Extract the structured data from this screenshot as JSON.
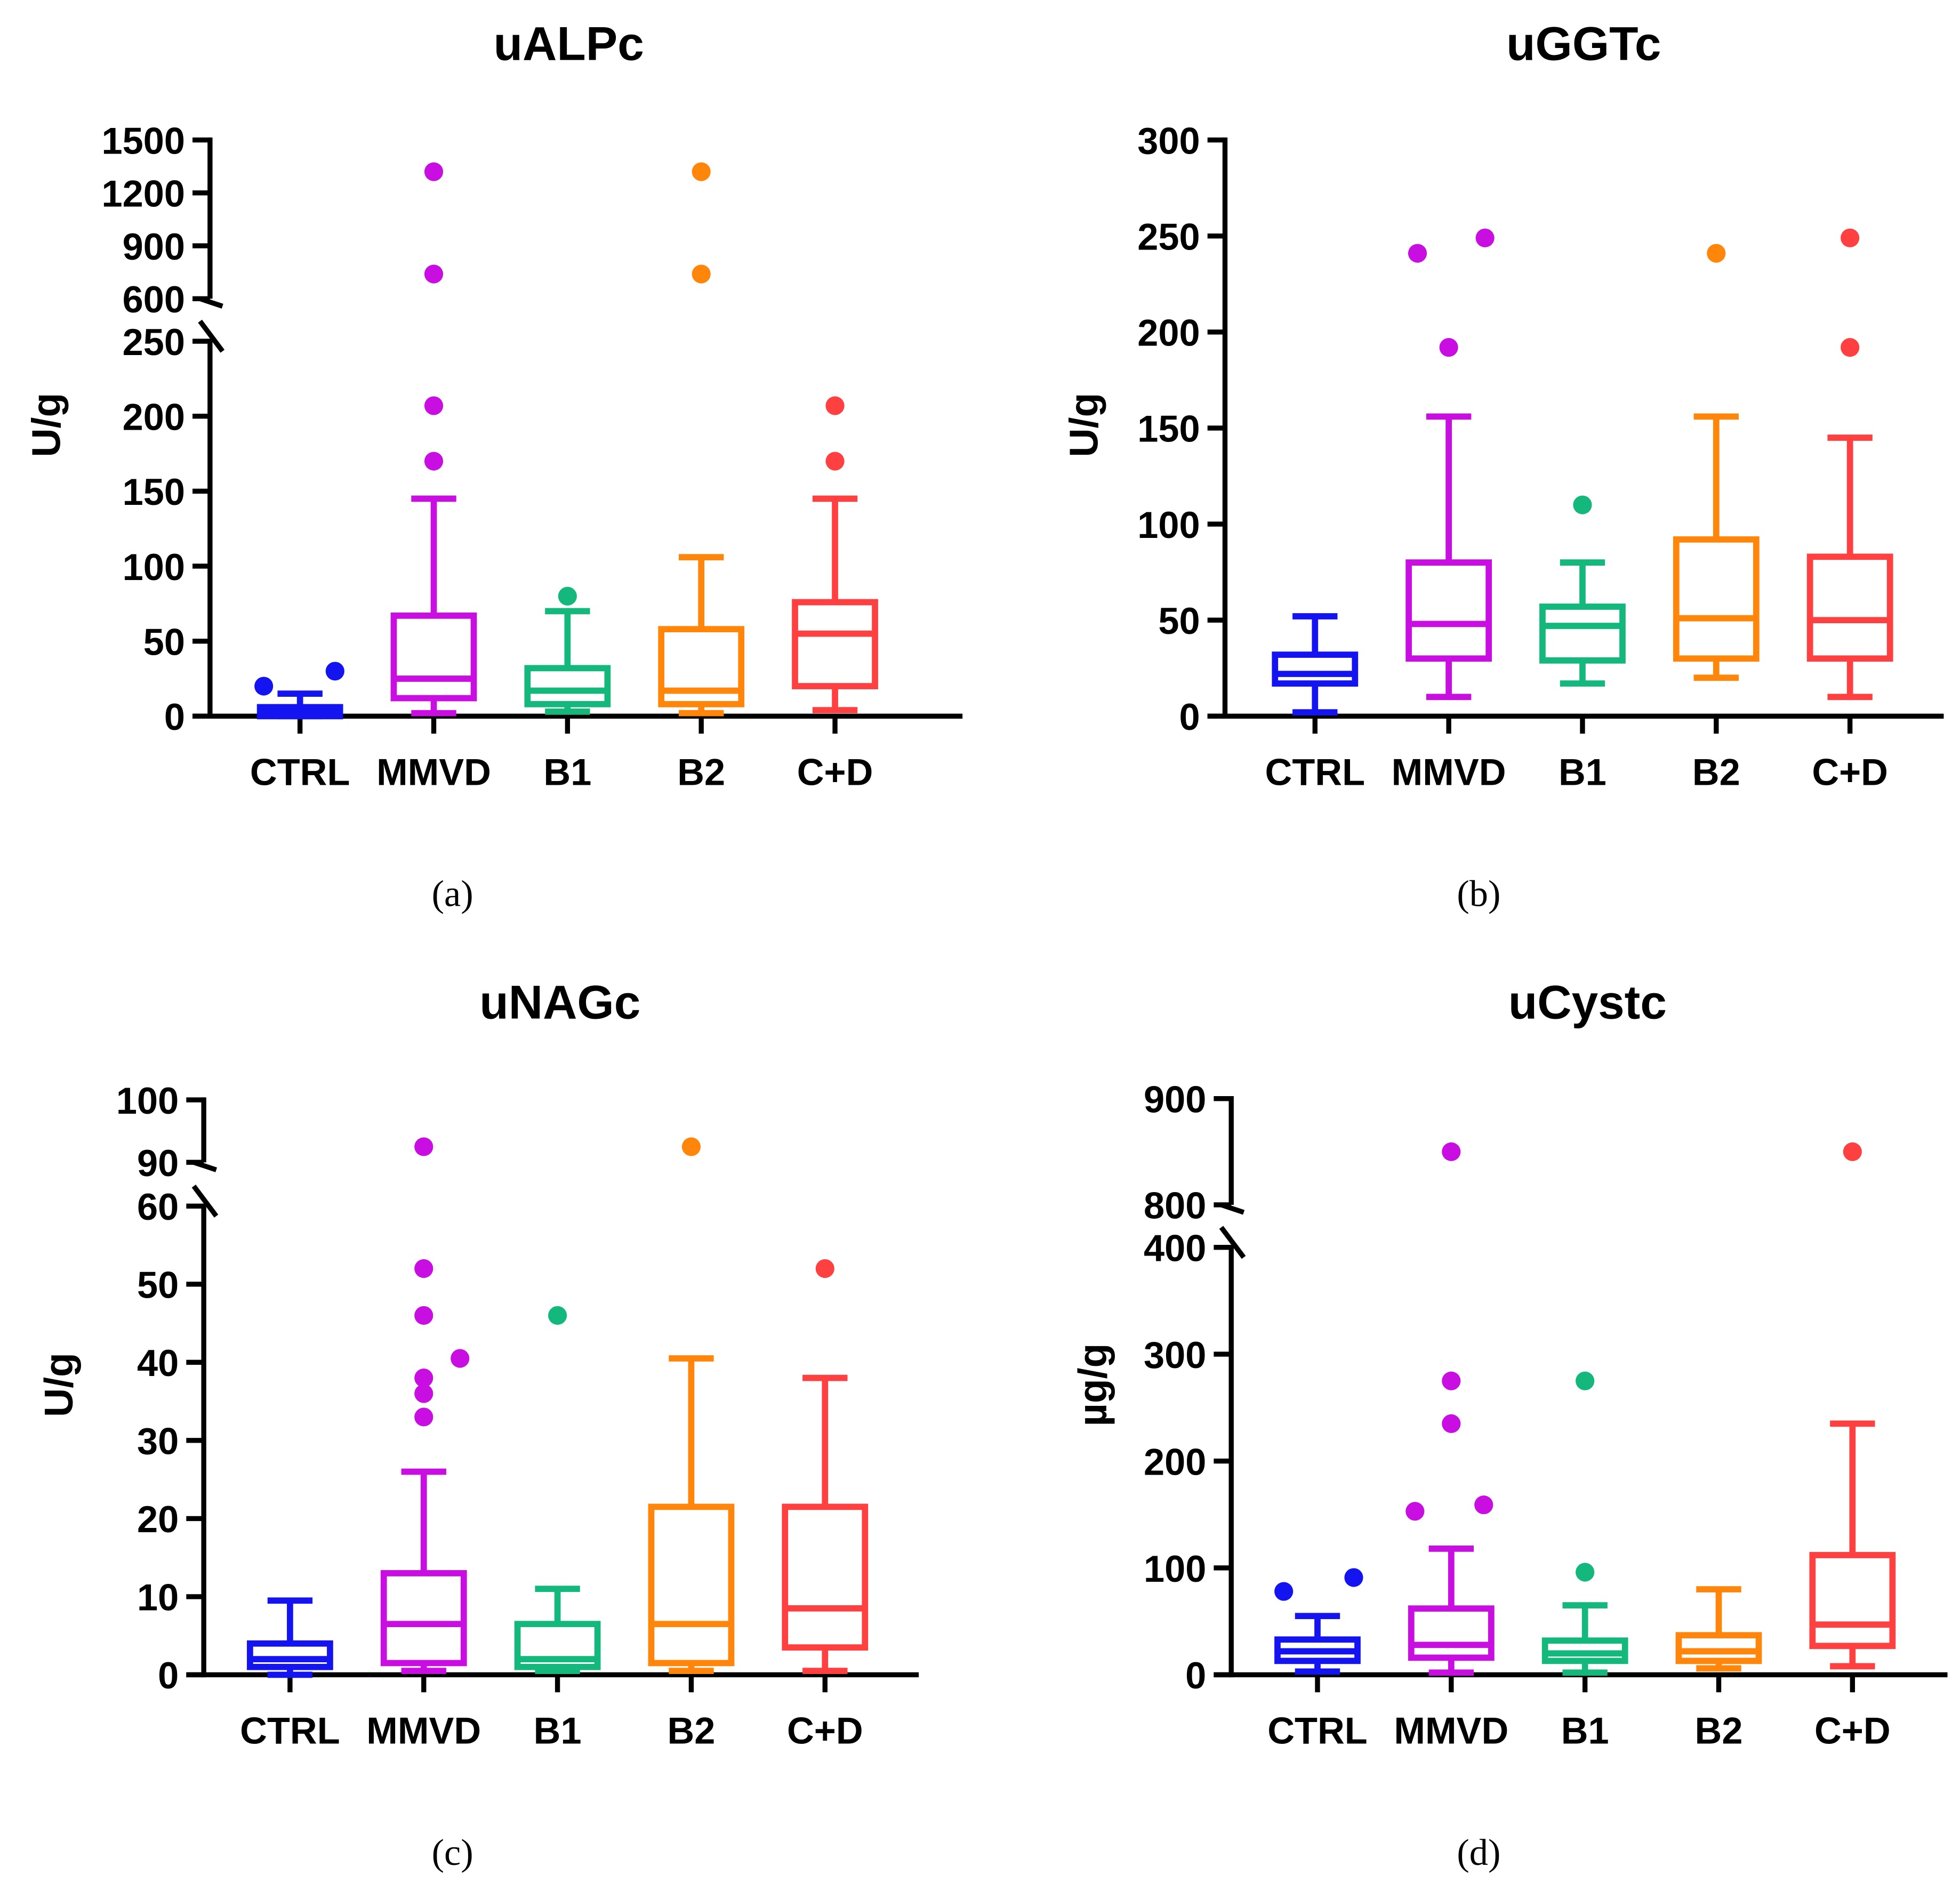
{
  "chart_data": [
    {
      "type": "box",
      "panel_label": "(a)",
      "title": "uALPc",
      "ylabel": "U/g",
      "yticks": [
        "0",
        "50",
        "100",
        "150",
        "200",
        "250",
        "600",
        "900",
        "1200",
        "1500"
      ],
      "y_break": [
        250,
        600
      ],
      "ylim": [
        0,
        1500
      ],
      "categories": [
        "CTRL",
        "MMVD",
        "B1",
        "B2",
        "C+D"
      ],
      "boxes": [
        {
          "min": 0,
          "q1": 0,
          "median": 3,
          "q3": 6,
          "max": 15,
          "outliers": [
            20,
            30
          ]
        },
        {
          "min": 2,
          "q1": 12,
          "median": 25,
          "q3": 67,
          "max": 145,
          "outliers": [
            170,
            207,
            740,
            1320
          ]
        },
        {
          "min": 3,
          "q1": 8,
          "median": 17,
          "q3": 32,
          "max": 70,
          "outliers": [
            80
          ]
        },
        {
          "min": 2,
          "q1": 8,
          "median": 17,
          "q3": 58,
          "max": 106,
          "outliers": [
            740,
            1320
          ]
        },
        {
          "min": 4,
          "q1": 20,
          "median": 55,
          "q3": 76,
          "max": 145,
          "outliers": [
            170,
            207
          ]
        }
      ]
    },
    {
      "type": "box",
      "panel_label": "(b)",
      "title": "uGGTc",
      "ylabel": "U/g",
      "yticks": [
        "0",
        "50",
        "100",
        "150",
        "200",
        "250",
        "300"
      ],
      "ylim": [
        0,
        300
      ],
      "categories": [
        "CTRL",
        "MMVD",
        "B1",
        "B2",
        "C+D"
      ],
      "boxes": [
        {
          "min": 2,
          "q1": 17,
          "median": 22,
          "q3": 32,
          "max": 52,
          "outliers": []
        },
        {
          "min": 10,
          "q1": 30,
          "median": 48,
          "q3": 80,
          "max": 156,
          "outliers": [
            192,
            241,
            249
          ]
        },
        {
          "min": 17,
          "q1": 29,
          "median": 47,
          "q3": 57,
          "max": 80,
          "outliers": [
            110
          ]
        },
        {
          "min": 20,
          "q1": 30,
          "median": 51,
          "q3": 92,
          "max": 156,
          "outliers": [
            241
          ]
        },
        {
          "min": 10,
          "q1": 30,
          "median": 50,
          "q3": 83,
          "max": 145,
          "outliers": [
            192,
            249
          ]
        }
      ]
    },
    {
      "type": "box",
      "panel_label": "(c)",
      "title": "uNAGc",
      "ylabel": "U/g",
      "yticks": [
        "0",
        "10",
        "20",
        "30",
        "40",
        "50",
        "60",
        "90",
        "100"
      ],
      "y_break": [
        60,
        90
      ],
      "ylim": [
        0,
        100
      ],
      "categories": [
        "CTRL",
        "MMVD",
        "B1",
        "B2",
        "C+D"
      ],
      "boxes": [
        {
          "min": 0,
          "q1": 1,
          "median": 2,
          "q3": 4,
          "max": 9.5,
          "outliers": []
        },
        {
          "min": 0.5,
          "q1": 1.5,
          "median": 6.5,
          "q3": 13,
          "max": 26,
          "outliers": [
            33,
            36,
            38,
            40.5,
            46,
            52,
            92.5
          ]
        },
        {
          "min": 0.5,
          "q1": 1,
          "median": 2,
          "q3": 6.5,
          "max": 11,
          "outliers": [
            46
          ]
        },
        {
          "min": 0.5,
          "q1": 1.5,
          "median": 6.5,
          "q3": 21.5,
          "max": 40.5,
          "outliers": [
            92.5
          ]
        },
        {
          "min": 0.5,
          "q1": 3.5,
          "median": 8.5,
          "q3": 21.5,
          "max": 38,
          "outliers": [
            52
          ]
        }
      ]
    },
    {
      "type": "box",
      "panel_label": "(d)",
      "title": "uCystc",
      "ylabel": "µg/g",
      "yticks": [
        "0",
        "100",
        "200",
        "300",
        "400",
        "800",
        "900"
      ],
      "y_break": [
        400,
        800
      ],
      "ylim": [
        0,
        900
      ],
      "categories": [
        "CTRL",
        "MMVD",
        "B1",
        "B2",
        "C+D"
      ],
      "boxes": [
        {
          "min": 3,
          "q1": 13,
          "median": 22,
          "q3": 33,
          "max": 55,
          "outliers": [
            78,
            91
          ]
        },
        {
          "min": 2,
          "q1": 16,
          "median": 28,
          "q3": 62,
          "max": 118,
          "outliers": [
            153,
            159,
            235,
            275,
            850
          ]
        },
        {
          "min": 2,
          "q1": 13,
          "median": 20,
          "q3": 32,
          "max": 65,
          "outliers": [
            96,
            275
          ]
        },
        {
          "min": 6,
          "q1": 13,
          "median": 22,
          "q3": 37,
          "max": 80,
          "outliers": []
        },
        {
          "min": 8,
          "q1": 27,
          "median": 47,
          "q3": 112,
          "max": 235,
          "outliers": [
            850
          ]
        }
      ]
    }
  ],
  "colors": {
    "CTRL": "#1414f0",
    "MMVD": "#c80ee0",
    "B1": "#14b87c",
    "B2": "#ff860a",
    "C+D": "#ff4040"
  }
}
